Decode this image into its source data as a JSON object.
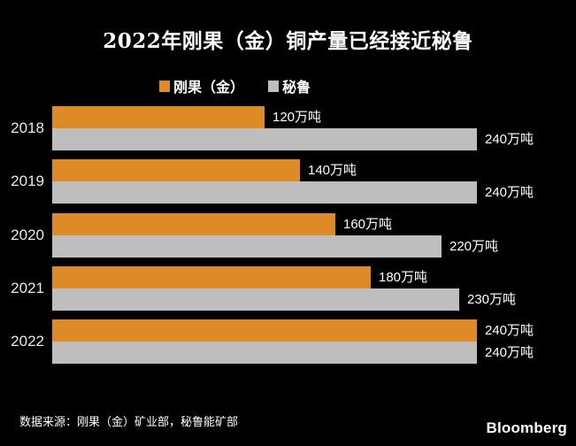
{
  "chart_data": {
    "type": "bar",
    "orientation": "horizontal",
    "title": "2022年刚果（金）铜产量已经接近秘鲁",
    "categories": [
      "2018",
      "2019",
      "2020",
      "2021",
      "2022"
    ],
    "series": [
      {
        "name": "刚果（金）",
        "color": "#DD8A27",
        "values": [
          120,
          140,
          160,
          180,
          240
        ],
        "labels": [
          "120万吨",
          "140万吨",
          "160万吨",
          "180万吨",
          "240万吨"
        ]
      },
      {
        "name": "秘鲁",
        "color": "#BEBEBE",
        "values": [
          240,
          240,
          220,
          230,
          240
        ],
        "labels": [
          "240万吨",
          "240万吨",
          "220万吨",
          "230万吨",
          "240万吨"
        ]
      }
    ],
    "unit": "万吨",
    "xlim": [
      0,
      240
    ],
    "grid": false,
    "legend_position": "top"
  },
  "footer": {
    "source": "数据来源：刚果（金）矿业部，秘鲁能矿部",
    "brand": "Bloomberg"
  },
  "colors": {
    "background": "#000000",
    "title_text": "#FFFFFF",
    "year_text": "#E8E8E8",
    "value_text": "#FFFFFF"
  }
}
